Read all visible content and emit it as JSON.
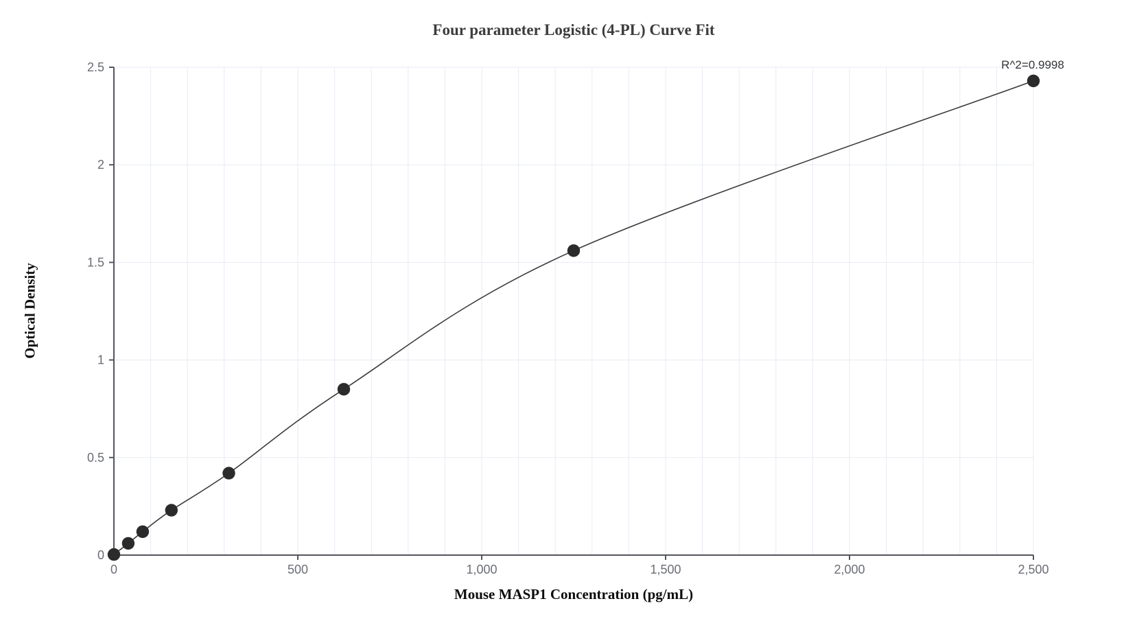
{
  "chart_data": {
    "type": "scatter",
    "title": "Four parameter Logistic (4-PL) Curve Fit",
    "xlabel": "Mouse MASP1 Concentration (pg/mL)",
    "ylabel": "Optical Density",
    "annotation": "R^2=0.9998",
    "xlim": [
      0,
      2500
    ],
    "ylim": [
      0,
      2.5
    ],
    "x_ticks": [
      0,
      500,
      1000,
      1500,
      2000,
      2500
    ],
    "x_tick_labels": [
      "0",
      "500",
      "1,000",
      "1,500",
      "2,000",
      "2,500"
    ],
    "y_ticks": [
      0,
      0.5,
      1,
      1.5,
      2,
      2.5
    ],
    "y_tick_labels": [
      "0",
      "0.5",
      "1",
      "1.5",
      "2",
      "2.5"
    ],
    "x_minor_grid_step": 100,
    "grid": "on",
    "legend": "none",
    "curve_style": "smooth 4-PL fit line through points",
    "points": [
      {
        "x": 0,
        "y": 0.003
      },
      {
        "x": 39.06,
        "y": 0.06
      },
      {
        "x": 78.13,
        "y": 0.12
      },
      {
        "x": 156.25,
        "y": 0.23
      },
      {
        "x": 312.5,
        "y": 0.42
      },
      {
        "x": 625,
        "y": 0.85
      },
      {
        "x": 1250,
        "y": 1.56
      },
      {
        "x": 2500,
        "y": 2.43
      }
    ],
    "colors": {
      "point": "#2b2b2b",
      "curve": "#3a3a3a",
      "axis": "#54565e",
      "tick_label": "#6a6d76",
      "grid": "#e8ebf4",
      "title": "#3d3d3d",
      "axis_title": "#0d0d0d",
      "annotation": "#33353a",
      "background": "#ffffff"
    }
  }
}
